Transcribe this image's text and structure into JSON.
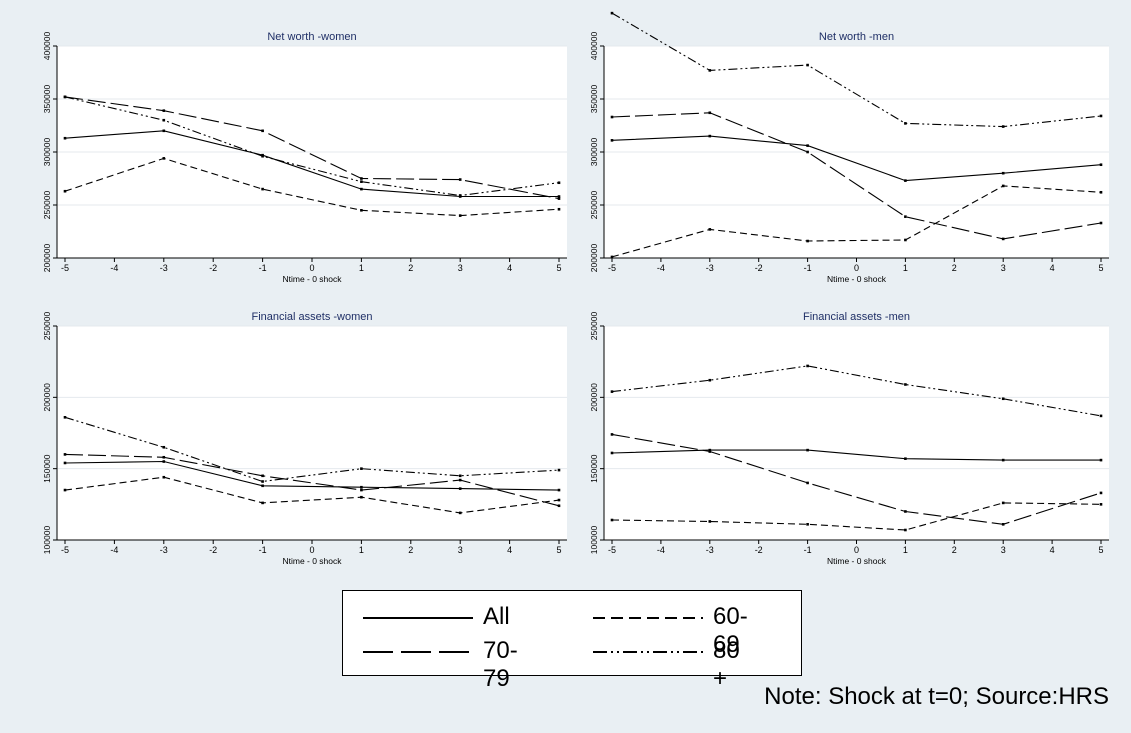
{
  "chart_data": [
    {
      "type": "line",
      "title": "Net worth -women",
      "xlabel": "Ntime - 0 shock",
      "ylabel": "",
      "xlim": [
        -5,
        5
      ],
      "ylim": [
        200000,
        400000
      ],
      "xticks": [
        -5,
        -4,
        -3,
        -2,
        -1,
        0,
        1,
        2,
        3,
        4,
        5
      ],
      "yticks": [
        200000,
        250000,
        300000,
        350000,
        400000
      ],
      "x": [
        -5,
        -3,
        -1,
        1,
        3,
        5
      ],
      "series": [
        {
          "name": "All",
          "values": [
            313000,
            320000,
            297000,
            265000,
            258000,
            258000
          ]
        },
        {
          "name": "60-69",
          "values": [
            263000,
            294000,
            265000,
            245000,
            240000,
            246000
          ]
        },
        {
          "name": "70-79",
          "values": [
            352000,
            339000,
            320000,
            275000,
            274000,
            256000
          ]
        },
        {
          "name": "80 +",
          "values": [
            352000,
            330000,
            296000,
            272000,
            259000,
            271000
          ]
        }
      ]
    },
    {
      "type": "line",
      "title": "Net worth -men",
      "xlabel": "Ntime - 0 shock",
      "ylabel": "",
      "xlim": [
        -5,
        5
      ],
      "ylim": [
        200000,
        400000
      ],
      "xticks": [
        -5,
        -4,
        -3,
        -2,
        -1,
        0,
        1,
        2,
        3,
        4,
        5
      ],
      "yticks": [
        200000,
        250000,
        300000,
        350000,
        400000
      ],
      "x": [
        -5,
        -3,
        -1,
        1,
        3,
        5
      ],
      "series": [
        {
          "name": "All",
          "values": [
            311000,
            315000,
            306000,
            273000,
            280000,
            288000
          ]
        },
        {
          "name": "60-69",
          "values": [
            201000,
            227000,
            216000,
            217000,
            268000,
            262000
          ]
        },
        {
          "name": "70-79",
          "values": [
            333000,
            337000,
            300000,
            239000,
            218000,
            233000
          ]
        },
        {
          "name": "80 +",
          "values": [
            431000,
            377000,
            382000,
            327000,
            324000,
            334000
          ]
        }
      ]
    },
    {
      "type": "line",
      "title": "Financial assets -women",
      "xlabel": "Ntime - 0 shock",
      "ylabel": "",
      "xlim": [
        -5,
        5
      ],
      "ylim": [
        100000,
        250000
      ],
      "xticks": [
        -5,
        -4,
        -3,
        -2,
        -1,
        0,
        1,
        2,
        3,
        4,
        5
      ],
      "yticks": [
        100000,
        150000,
        200000,
        250000
      ],
      "x": [
        -5,
        -3,
        -1,
        1,
        3,
        5
      ],
      "series": [
        {
          "name": "All",
          "values": [
            154000,
            155000,
            138000,
            137000,
            136000,
            135000
          ]
        },
        {
          "name": "60-69",
          "values": [
            135000,
            144000,
            126000,
            130000,
            119000,
            128000
          ]
        },
        {
          "name": "70-79",
          "values": [
            160000,
            158000,
            145000,
            135000,
            142000,
            124000
          ]
        },
        {
          "name": "80 +",
          "values": [
            186000,
            165000,
            141000,
            150000,
            145000,
            149000
          ]
        }
      ]
    },
    {
      "type": "line",
      "title": "Financial assets -men",
      "xlabel": "Ntime - 0 shock",
      "ylabel": "",
      "xlim": [
        -5,
        5
      ],
      "ylim": [
        100000,
        250000
      ],
      "xticks": [
        -5,
        -4,
        -3,
        -2,
        -1,
        0,
        1,
        2,
        3,
        4,
        5
      ],
      "yticks": [
        100000,
        150000,
        200000,
        250000
      ],
      "x": [
        -5,
        -3,
        -1,
        1,
        3,
        5
      ],
      "series": [
        {
          "name": "All",
          "values": [
            161000,
            163000,
            163000,
            157000,
            156000,
            156000
          ]
        },
        {
          "name": "60-69",
          "values": [
            114000,
            113000,
            111000,
            107000,
            126000,
            125000
          ]
        },
        {
          "name": "70-79",
          "values": [
            174000,
            162000,
            140000,
            120000,
            111000,
            133000
          ]
        },
        {
          "name": "80 +",
          "values": [
            204000,
            212000,
            222000,
            209000,
            199000,
            187000
          ]
        }
      ]
    }
  ],
  "legend": {
    "entries": [
      {
        "label": "All",
        "dash": "solid"
      },
      {
        "label": "60-69",
        "dash": "short-dash"
      },
      {
        "label": "70-79",
        "dash": "long-dash"
      },
      {
        "label": "80 +",
        "dash": "dash-dot-dot"
      }
    ]
  },
  "note": "Note: Shock at t=0; Source:HRS",
  "colors": {
    "background": "#e9eff3",
    "plot_area": "#ffffff",
    "title": "#1f2f66",
    "grid": "#e4eaee",
    "line": "#000000"
  }
}
